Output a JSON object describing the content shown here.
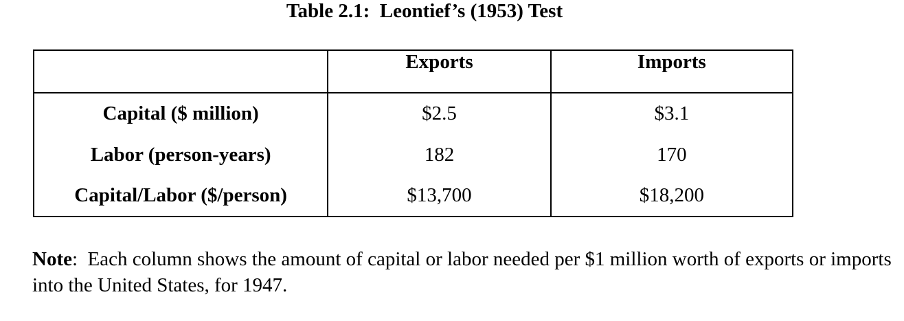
{
  "title": "Table 2.1:  Leontief’s (1953) Test",
  "table": {
    "headers": [
      "",
      "Exports",
      "Imports"
    ],
    "rows": [
      {
        "label": "Capital ($ million)",
        "exports": "$2.5",
        "imports": "$3.1"
      },
      {
        "label": "Labor (person-years)",
        "exports": "182",
        "imports": "170"
      },
      {
        "label": "Capital/Labor ($/person)",
        "exports": "$13,700",
        "imports": "$18,200"
      }
    ]
  },
  "note": {
    "label": "Note",
    "separator": ":  ",
    "text": "Each column shows the amount of capital or labor needed per $1 million worth of exports or imports into the United States, for 1947."
  }
}
